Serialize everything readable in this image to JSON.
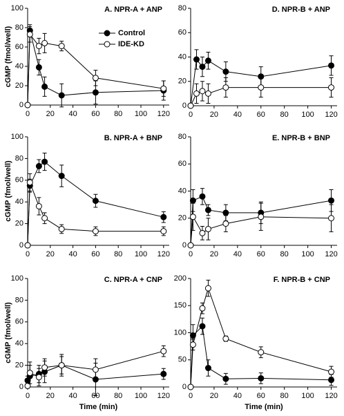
{
  "chart_data": [
    {
      "type": "line",
      "title": "A. NPR-A + ANP",
      "ylabel": "cGMP (fmol/well)",
      "x": [
        0,
        2,
        10,
        15,
        30,
        60,
        120
      ],
      "xlim": [
        0,
        125
      ],
      "xticks": [
        0,
        20,
        40,
        60,
        80,
        100,
        120
      ],
      "ylim": [
        0,
        100
      ],
      "yticks": [
        0,
        20,
        40,
        60,
        80,
        100
      ],
      "legend": "upper center",
      "series": [
        {
          "name": "Control",
          "color": "#000000",
          "marker": "filled",
          "values": [
            0,
            77,
            39,
            19,
            10,
            13,
            15
          ],
          "errors": [
            0,
            6,
            8,
            10,
            12,
            12,
            10
          ]
        },
        {
          "name": "IDE-KD",
          "color": "#000000",
          "marker": "open",
          "values": [
            0,
            73,
            61,
            64,
            61,
            28,
            17
          ],
          "errors": [
            0,
            8,
            8,
            10,
            5,
            8,
            8
          ]
        }
      ]
    },
    {
      "type": "line",
      "title": "D. NPR-B + ANP",
      "x": [
        0,
        5,
        10,
        15,
        30,
        60,
        120
      ],
      "xlim": [
        0,
        125
      ],
      "xticks": [
        0,
        20,
        40,
        60,
        80,
        100,
        120
      ],
      "ylim": [
        0,
        80
      ],
      "yticks": [
        0,
        20,
        40,
        60,
        80
      ],
      "series": [
        {
          "color": "#000000",
          "marker": "filled",
          "values": [
            0,
            38,
            32,
            37,
            28,
            24,
            33
          ],
          "errors": [
            0,
            8,
            8,
            7,
            8,
            8,
            8
          ]
        },
        {
          "color": "#000000",
          "marker": "open",
          "values": [
            0,
            10,
            12,
            10,
            15,
            15,
            15
          ],
          "errors": [
            0,
            8,
            8,
            8,
            8,
            8,
            8
          ]
        }
      ]
    },
    {
      "type": "line",
      "title": "B. NPR-A + BNP",
      "ylabel": "cGMP (fmol/well)",
      "x": [
        0,
        2,
        10,
        15,
        30,
        60,
        120
      ],
      "xlim": [
        0,
        125
      ],
      "xticks": [
        0,
        20,
        40,
        60,
        80,
        100,
        120
      ],
      "ylim": [
        0,
        100
      ],
      "yticks": [
        0,
        20,
        40,
        60,
        80,
        100
      ],
      "series": [
        {
          "color": "#000000",
          "marker": "filled",
          "values": [
            0,
            55,
            73,
            77,
            64,
            41,
            26
          ],
          "errors": [
            0,
            6,
            6,
            8,
            10,
            6,
            5
          ]
        },
        {
          "color": "#000000",
          "marker": "open",
          "values": [
            0,
            58,
            36,
            25,
            15,
            13,
            13
          ],
          "errors": [
            0,
            8,
            8,
            5,
            4,
            4,
            4
          ]
        }
      ]
    },
    {
      "type": "line",
      "title": "E. NPR-B + BNP",
      "x": [
        0,
        2,
        10,
        15,
        30,
        60,
        120
      ],
      "xlim": [
        0,
        125
      ],
      "xticks": [
        0,
        20,
        40,
        60,
        80,
        100,
        120
      ],
      "ylim": [
        0,
        80
      ],
      "yticks": [
        0,
        20,
        40,
        60,
        80
      ],
      "series": [
        {
          "color": "#000000",
          "marker": "filled",
          "values": [
            0,
            33,
            36,
            26,
            24,
            24,
            33
          ],
          "errors": [
            0,
            8,
            6,
            4,
            6,
            8,
            8
          ]
        },
        {
          "color": "#000000",
          "marker": "open",
          "values": [
            0,
            21,
            9,
            12,
            16,
            21,
            20
          ],
          "errors": [
            0,
            10,
            5,
            8,
            6,
            10,
            10
          ]
        }
      ]
    },
    {
      "type": "line",
      "title": "C. NPR-A + CNP",
      "ylabel": "cGMP (fmol/well)",
      "xlabel": "Time (min)",
      "x": [
        0,
        2,
        10,
        15,
        30,
        60,
        120
      ],
      "xlim": [
        0,
        125
      ],
      "xticks": [
        0,
        20,
        40,
        60,
        80,
        100,
        120
      ],
      "ylim": [
        0,
        100
      ],
      "yticks": [
        0,
        20,
        40,
        60,
        80,
        100
      ],
      "series": [
        {
          "color": "#000000",
          "marker": "filled",
          "values": [
            6,
            10,
            12,
            14,
            20,
            7,
            12
          ],
          "errors": [
            4,
            10,
            8,
            10,
            8,
            15,
            5
          ]
        },
        {
          "color": "#000000",
          "marker": "open",
          "values": [
            1,
            13,
            9,
            18,
            20,
            16,
            33
          ],
          "errors": [
            2,
            10,
            8,
            8,
            10,
            10,
            5
          ]
        }
      ]
    },
    {
      "type": "line",
      "title": "F. NPR-B + CNP",
      "xlabel": "Time (min)",
      "x": [
        0,
        2,
        10,
        15,
        30,
        60,
        120
      ],
      "xlim": [
        0,
        125
      ],
      "xticks": [
        0,
        20,
        40,
        60,
        80,
        100,
        120
      ],
      "ylim": [
        0,
        200
      ],
      "yticks": [
        0,
        50,
        100,
        150,
        200
      ],
      "series": [
        {
          "color": "#000000",
          "marker": "filled",
          "values": [
            0,
            95,
            112,
            35,
            15,
            16,
            13
          ],
          "errors": [
            0,
            20,
            15,
            15,
            10,
            10,
            10
          ]
        },
        {
          "color": "#000000",
          "marker": "open",
          "values": [
            0,
            78,
            145,
            182,
            89,
            64,
            28
          ],
          "errors": [
            0,
            10,
            10,
            15,
            5,
            10,
            10
          ]
        }
      ]
    }
  ]
}
